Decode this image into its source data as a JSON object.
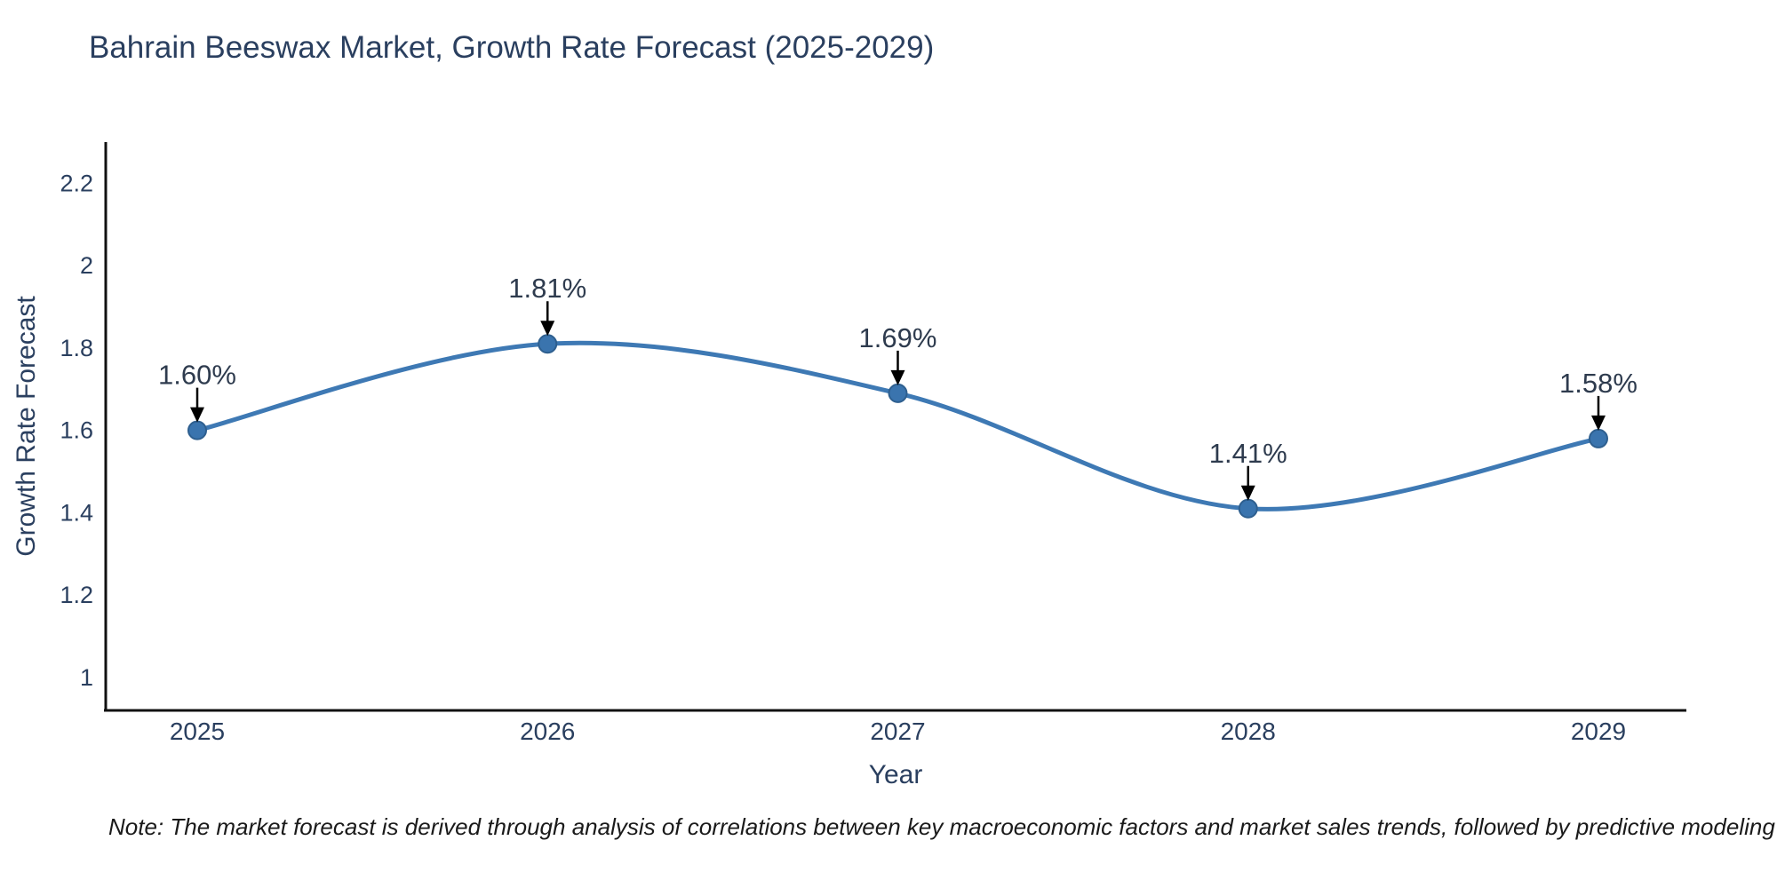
{
  "chart": {
    "title": "Bahrain Beeswax Market, Growth Rate Forecast (2025-2029)",
    "xlabel": "Year",
    "ylabel": "Growth Rate Forecast",
    "note": "Note: The market forecast is derived through analysis of correlations between key macroeconomic factors and market sales trends, followed by predictive modeling to project future sales"
  },
  "chart_data": {
    "type": "line",
    "title": "Bahrain Beeswax Market, Growth Rate Forecast (2025-2029)",
    "xlabel": "Year",
    "ylabel": "Growth Rate Forecast",
    "categories": [
      "2025",
      "2026",
      "2027",
      "2028",
      "2029"
    ],
    "series": [
      {
        "name": "Growth Rate Forecast",
        "values": [
          1.6,
          1.81,
          1.69,
          1.41,
          1.58
        ],
        "point_labels": [
          "1.60%",
          "1.81%",
          "1.69%",
          "1.41%",
          "1.58%"
        ]
      }
    ],
    "line_shape": "spline",
    "markers": true,
    "grid": false,
    "legend": false,
    "ylim": [
      0.92,
      2.3
    ],
    "yticks": [
      1,
      1.2,
      1.4,
      1.6,
      1.8,
      2,
      2.2
    ],
    "ytick_labels": [
      "1",
      "1.2",
      "1.4",
      "1.6",
      "1.8",
      "2",
      "2.2"
    ],
    "annotation_arrows": true,
    "colors": {
      "line": "#3e79b4",
      "marker_fill": "#3a74ae",
      "marker_edge": "#2e5f8f",
      "axis": "#111111",
      "tick_text": "#2a3f5f",
      "annotation_text": "#2e3b4e",
      "arrow": "#000000"
    }
  }
}
